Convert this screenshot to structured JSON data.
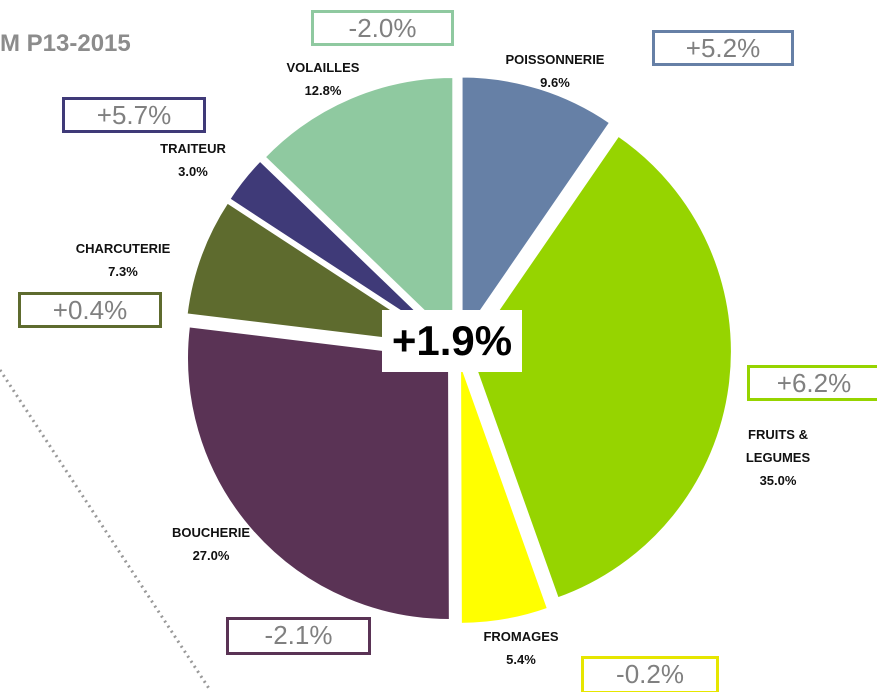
{
  "chart_data": {
    "type": "pie",
    "title": "M P13-2015",
    "categories": [
      "POISSONNERIE",
      "FRUITS & LEGUMES",
      "FROMAGES",
      "BOUCHERIE",
      "CHARCUTERIE",
      "TRAITEUR",
      "VOLAILLES"
    ],
    "values": [
      9.6,
      35.0,
      5.4,
      27.0,
      7.3,
      3.0,
      12.8
    ],
    "value_labels": [
      "9.6%",
      "35.0%",
      "5.4%",
      "27.0%",
      "7.3%",
      "3.0%",
      "12.8%"
    ],
    "colors": [
      "#6680a6",
      "#96d400",
      "#ffff00",
      "#5a3355",
      "#5e6b2e",
      "#3f3a78",
      "#8fc9a0"
    ],
    "changes": [
      {
        "value": 5.2,
        "label": "+5.2%"
      },
      {
        "value": 6.2,
        "label": "+6.2%"
      },
      {
        "value": -0.2,
        "label": "-0.2%"
      },
      {
        "value": -2.1,
        "label": "-2.1%"
      },
      {
        "value": 0.4,
        "label": "+0.4%"
      },
      {
        "value": 5.7,
        "label": "+5.7%"
      },
      {
        "value": -2.0,
        "label": "-2.0%"
      }
    ],
    "total_change": {
      "value": 1.9,
      "label": "+1.9%"
    }
  }
}
